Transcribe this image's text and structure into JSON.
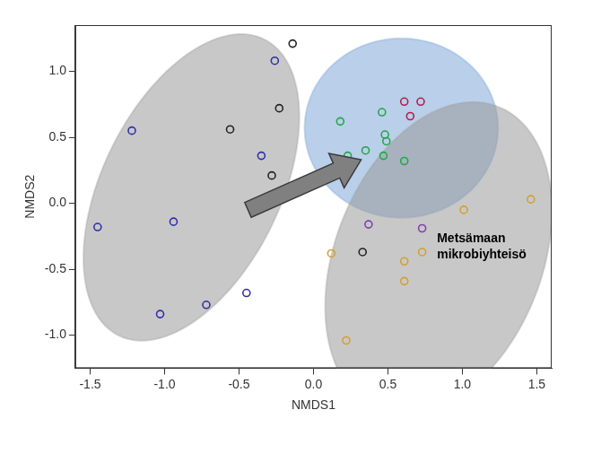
{
  "chart_data": {
    "type": "scatter",
    "x_label": "NMDS1",
    "y_label": "NMDS2",
    "xlim": [
      -1.6,
      1.6
    ],
    "ylim": [
      -1.25,
      1.35
    ],
    "xticks": [
      -1.5,
      {
        "value": -1,
        "label": "-1.0"
      },
      -0.5,
      {
        "value": 0,
        "label": "0.0"
      },
      0.5,
      {
        "value": 1,
        "label": "1.0"
      },
      1.5
    ],
    "yticks": [
      {
        "value": -1,
        "label": "-1.0"
      },
      -0.5,
      {
        "value": 0,
        "label": "0.0"
      },
      0.5,
      {
        "value": 1,
        "label": "1.0"
      }
    ],
    "grid": false,
    "series": [
      {
        "color": "#3030a8",
        "marker": "circle_open",
        "x": [
          -0.26,
          -1.22,
          -0.35,
          -0.94,
          -1.45,
          -0.45,
          -0.72,
          -1.03
        ],
        "y": [
          1.08,
          0.55,
          0.36,
          -0.14,
          -0.18,
          -0.68,
          -0.77,
          -0.84
        ]
      },
      {
        "color": "#222222",
        "marker": "circle_open",
        "x": [
          -0.14,
          -0.23,
          -0.56,
          -0.28,
          0.33
        ],
        "y": [
          1.21,
          0.72,
          0.56,
          0.21,
          -0.37
        ]
      },
      {
        "color": "#22a844",
        "marker": "circle_open",
        "x": [
          0.18,
          0.46,
          0.48,
          0.49,
          0.35,
          0.23,
          0.47,
          0.61
        ],
        "y": [
          0.62,
          0.69,
          0.52,
          0.47,
          0.4,
          0.36,
          0.36,
          0.32
        ]
      },
      {
        "color": "#b0204a",
        "marker": "circle_open",
        "x": [
          0.61,
          0.72,
          0.65
        ],
        "y": [
          0.77,
          0.77,
          0.66
        ]
      },
      {
        "color": "#8040b0",
        "marker": "circle_open",
        "x": [
          0.37,
          0.73
        ],
        "y": [
          -0.16,
          -0.19
        ]
      },
      {
        "color": "#d4a030",
        "marker": "circle_open",
        "x": [
          0.12,
          0.22,
          0.61,
          0.73,
          0.61,
          1.01,
          1.46
        ],
        "y": [
          -0.38,
          -1.04,
          -0.44,
          -0.37,
          -0.59,
          -0.05,
          0.03
        ]
      }
    ],
    "ellipses": [
      {
        "center": [
          -0.82,
          0.12
        ],
        "axis1": [
          0.475,
          1.13
        ],
        "axis2": [
          0.548,
          -0.27
        ],
        "color": "#9a9a9a"
      },
      {
        "center": [
          0.59,
          0.57
        ],
        "axis1": [
          0.65,
          0
        ],
        "axis2": [
          0,
          0.68
        ],
        "color": "#7fa7d9"
      },
      {
        "center": [
          0.84,
          -0.42
        ],
        "axis1": [
          0.38,
          1.16
        ],
        "axis2": [
          0.66,
          -0.25
        ],
        "color": "#9a9a9a"
      }
    ],
    "arrow": {
      "from": [
        -0.44,
        -0.05
      ],
      "to": [
        0.32,
        0.33
      ],
      "color": "#808080"
    },
    "annotations": [
      {
        "text": [
          "Metsämaan",
          "mikrobiyhteisö"
        ],
        "x": 0.83,
        "y": -0.27
      }
    ]
  }
}
